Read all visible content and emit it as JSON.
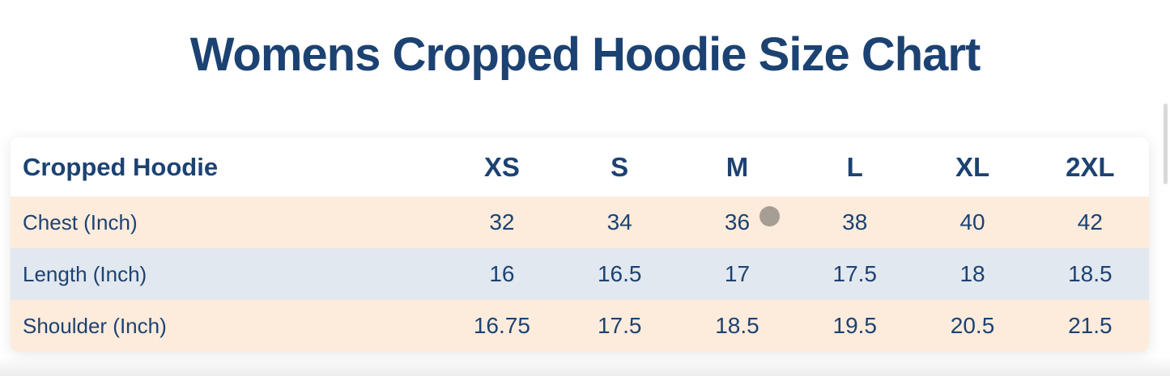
{
  "page": {
    "title": "Womens Cropped Hoodie Size Chart"
  },
  "colors": {
    "navy": "#1c4272",
    "peach_row": "#fdebdc",
    "blue_row": "#e2e8ef",
    "header_bg": "#ffffff",
    "page_bg": "#ffffff",
    "cursor_dot": "#a69d94",
    "scrollbar_thumb": "#d9d9d9"
  },
  "size_chart": {
    "label_header": "Cropped Hoodie",
    "columns": [
      "XS",
      "S",
      "M",
      "L",
      "XL",
      "2XL"
    ],
    "rows": [
      {
        "label": "Chest (Inch)",
        "values": [
          "32",
          "34",
          "36",
          "38",
          "40",
          "42"
        ]
      },
      {
        "label": "Length (Inch)",
        "values": [
          "16",
          "16.5",
          "17",
          "17.5",
          "18",
          "18.5"
        ]
      },
      {
        "label": "Shoulder (Inch)",
        "values": [
          "16.75",
          "17.5",
          "18.5",
          "19.5",
          "20.5",
          "21.5"
        ]
      }
    ]
  }
}
